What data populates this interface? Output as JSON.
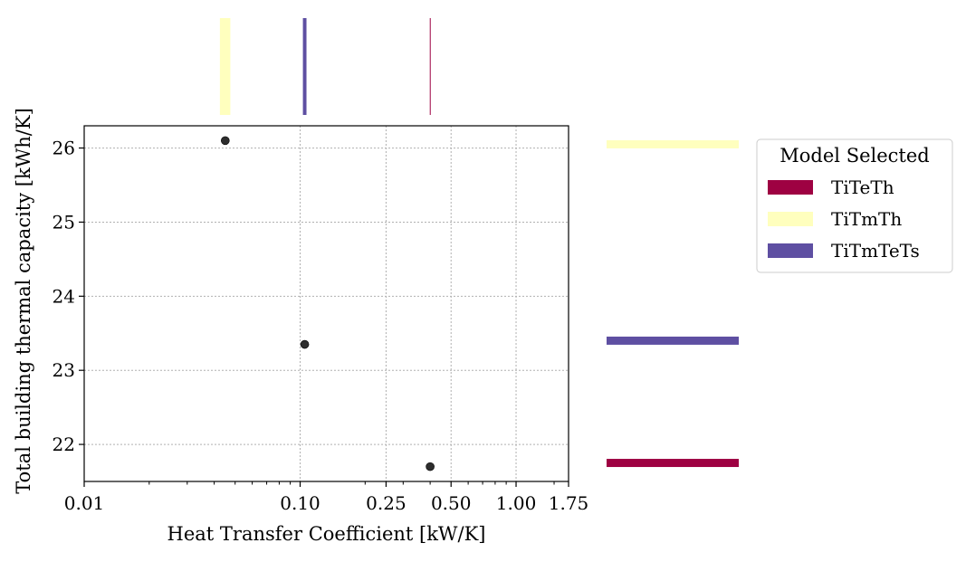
{
  "chart_data": {
    "type": "scatter",
    "title": "",
    "xlabel": "Heat Transfer Coefficient [kW/K]",
    "ylabel": "Total building thermal capacity [kWh/K]",
    "xscale": "log",
    "xlim": [
      0.01,
      1.75
    ],
    "ylim": [
      21.5,
      26.3
    ],
    "xticks": [
      0.01,
      0.1,
      0.25,
      0.5,
      1.0,
      1.75
    ],
    "xtick_labels": [
      "0.01",
      "0.10",
      "0.25",
      "0.50",
      "1.00",
      "1.75"
    ],
    "yticks": [
      22,
      23,
      24,
      25,
      26
    ],
    "ytick_labels": [
      "22",
      "23",
      "24",
      "25",
      "26"
    ],
    "grid": true,
    "points": [
      {
        "x": 0.045,
        "y": 26.1
      },
      {
        "x": 0.105,
        "y": 23.35
      },
      {
        "x": 0.4,
        "y": 21.7
      }
    ],
    "marginal_x": [
      {
        "model": "TiTmTh",
        "x": 0.045,
        "width": 0.005
      },
      {
        "model": "TiTmTeTs",
        "x": 0.105,
        "width": 0.004
      },
      {
        "model": "TiTeTh",
        "x": 0.4,
        "width": 0.003
      }
    ],
    "marginal_y": [
      {
        "model": "TiTmTh",
        "y": 26.05
      },
      {
        "model": "TiTmTeTs",
        "y": 23.4
      },
      {
        "model": "TiTeTh",
        "y": 21.75
      }
    ],
    "legend": {
      "title": "Model Selected",
      "placement": "upper right outside",
      "entries": [
        {
          "label": "TiTeTh",
          "color": "#9e0142"
        },
        {
          "label": "TiTmTh",
          "color": "#ffffbe"
        },
        {
          "label": "TiTmTeTs",
          "color": "#5e4fa2"
        }
      ]
    },
    "point_color": "#222222"
  }
}
